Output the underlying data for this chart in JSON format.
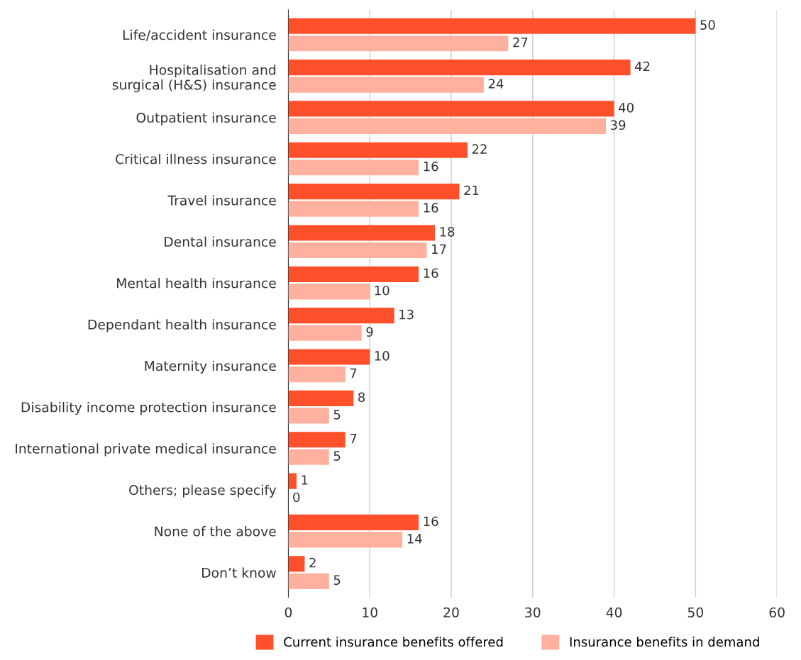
{
  "chart_data": {
    "type": "bar",
    "orientation": "horizontal",
    "categories": [
      "Life/accident insurance",
      "Hospitalisation and\nsurgical (H&S) insurance",
      "Outpatient insurance",
      "Critical illness insurance",
      "Travel insurance",
      "Dental insurance",
      "Mental health insurance",
      "Dependant health insurance",
      "Maternity insurance",
      "Disability income protection insurance",
      "International private medical insurance",
      "Others; please specify",
      "None of the above",
      "Don’t know"
    ],
    "series": [
      {
        "name": "Current insurance benefits offered",
        "color": "#ff4f2b",
        "values": [
          50,
          42,
          40,
          22,
          21,
          18,
          16,
          13,
          10,
          8,
          7,
          1,
          16,
          2
        ]
      },
      {
        "name": "Insurance benefits in demand",
        "color": "#ffb09e",
        "values": [
          27,
          24,
          39,
          16,
          16,
          17,
          10,
          9,
          7,
          5,
          5,
          0,
          14,
          5
        ]
      }
    ],
    "xlim": [
      0,
      60
    ],
    "xticks": [
      0,
      10,
      20,
      30,
      40,
      50,
      60
    ],
    "grid": "x",
    "legend": "bottom",
    "data_labels": true
  }
}
